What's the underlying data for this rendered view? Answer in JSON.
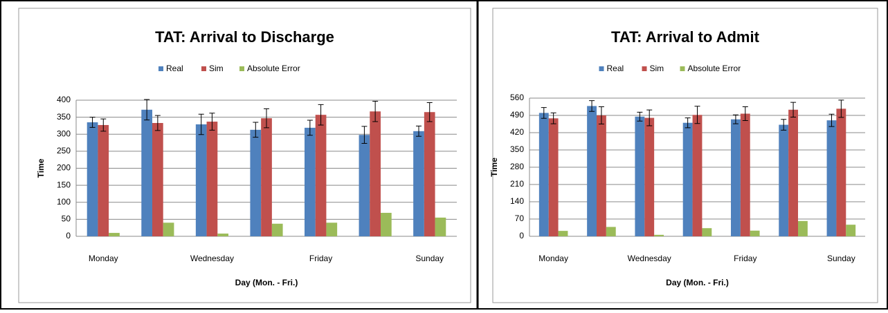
{
  "chart_data": [
    {
      "type": "bar",
      "title": "TAT: Arrival to Discharge",
      "xlabel": "Day (Mon. - Fri.)",
      "ylabel": "Time",
      "categories": [
        "Monday",
        null,
        "Wednesday",
        null,
        "Friday",
        null,
        "Sunday"
      ],
      "series": [
        {
          "name": "Real",
          "color": "#4f81bd",
          "values": [
            335,
            372,
            329,
            313,
            319,
            298,
            309
          ],
          "errors": [
            15,
            30,
            30,
            22,
            22,
            25,
            15
          ]
        },
        {
          "name": "Sim",
          "color": "#c0504d",
          "values": [
            327,
            333,
            337,
            347,
            357,
            367,
            365
          ],
          "errors": [
            18,
            22,
            25,
            28,
            30,
            30,
            28
          ]
        },
        {
          "name": "Absolute Error",
          "color": "#9bbb59",
          "values": [
            10,
            40,
            8,
            37,
            40,
            69,
            55
          ]
        }
      ],
      "ylim": [
        0,
        400
      ],
      "yticks": [
        0,
        50,
        100,
        150,
        200,
        250,
        300,
        350,
        400
      ],
      "grid": true,
      "legend": "top"
    },
    {
      "type": "bar",
      "title": "TAT: Arrival to Admit",
      "xlabel": "Day (Mon. - Fri.)",
      "ylabel": "Time",
      "categories": [
        "Monday",
        null,
        "Wednesday",
        null,
        "Friday",
        null,
        "Sunday"
      ],
      "series": [
        {
          "name": "Real",
          "color": "#4f81bd",
          "values": [
            500,
            528,
            485,
            460,
            474,
            452,
            470
          ],
          "errors": [
            22,
            22,
            18,
            20,
            18,
            22,
            25
          ]
        },
        {
          "name": "Sim",
          "color": "#c0504d",
          "values": [
            478,
            490,
            480,
            492,
            497,
            513,
            517
          ],
          "errors": [
            22,
            35,
            32,
            35,
            28,
            30,
            35
          ]
        },
        {
          "name": "Absolute Error",
          "color": "#9bbb59",
          "values": [
            22,
            38,
            6,
            33,
            23,
            62,
            47
          ]
        }
      ],
      "ylim": [
        0,
        560
      ],
      "yticks": [
        0,
        70,
        140,
        210,
        280,
        350,
        420,
        490,
        560
      ],
      "grid": true,
      "legend": "top"
    }
  ]
}
